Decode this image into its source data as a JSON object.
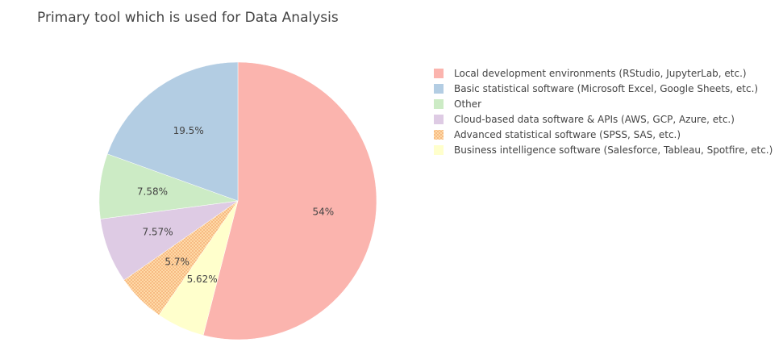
{
  "chart_data": {
    "type": "pie",
    "title": "Primary tool which is used for Data Analysis",
    "categories": [
      "Local development environments (RStudio, JupyterLab, etc.)",
      "Basic statistical software (Microsoft Excel, Google Sheets, etc.)",
      "Other",
      "Cloud-based data software & APIs (AWS, GCP, Azure, etc.)",
      "Advanced statistical software (SPSS, SAS, etc.)",
      "Business intelligence software (Salesforce, Tableau, Spotfire, etc.)"
    ],
    "values": [
      54,
      19.5,
      7.58,
      7.57,
      5.7,
      5.62
    ],
    "value_labels": [
      "54%",
      "19.5%",
      "7.58%",
      "7.57%",
      "5.7%",
      "5.62%"
    ],
    "legend_order": [
      0,
      1,
      2,
      3,
      4,
      5
    ],
    "slice_order": [
      0,
      5,
      4,
      3,
      2,
      1
    ],
    "direction": "clockwise",
    "start_angle_deg": 90,
    "colors": [
      "#fbb4ae",
      "#b3cde3",
      "#ccebc5",
      "#decbe4",
      "#fed9a6",
      "#ffffcc"
    ],
    "patterned": [
      false,
      false,
      false,
      false,
      true,
      false
    ],
    "legend_placement": "top-right"
  }
}
